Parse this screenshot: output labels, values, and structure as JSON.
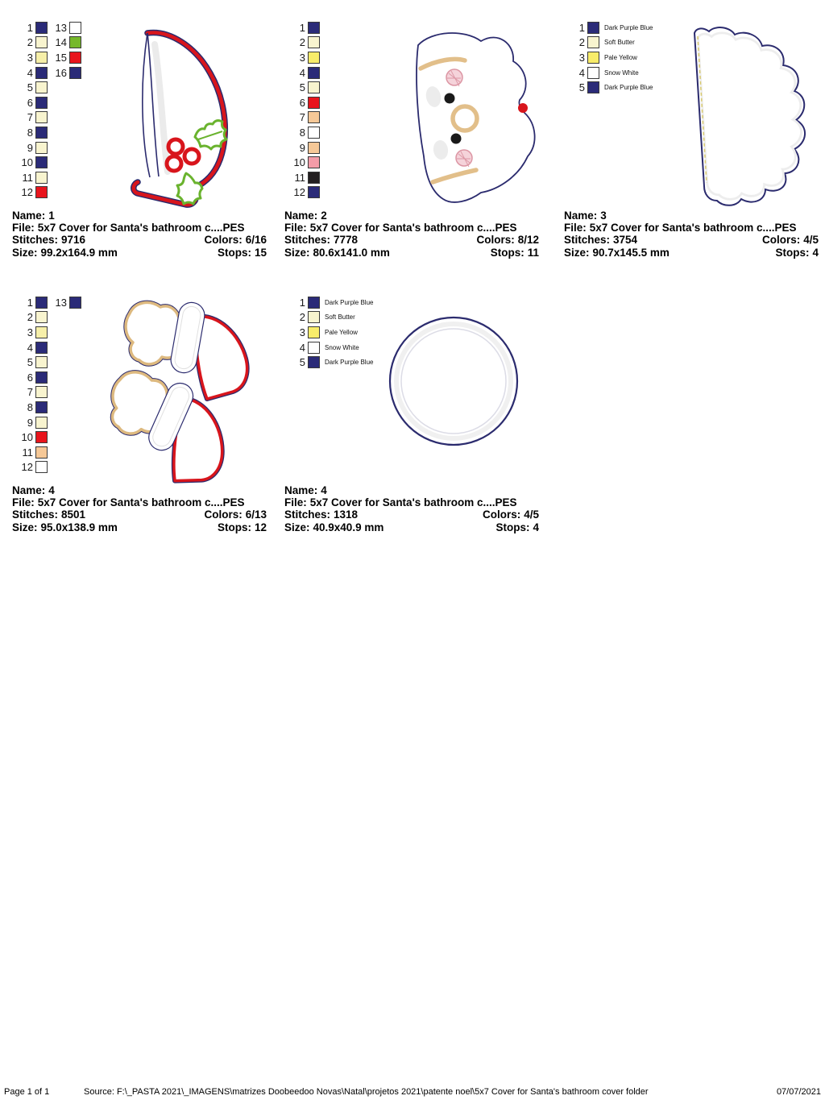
{
  "labels": {
    "name": "Name:",
    "file": "File:",
    "stitches": "Stitches:",
    "colors": "Colors:",
    "size": "Size:",
    "stops": "Stops:"
  },
  "accent_colors": {
    "navy": "#2b2b78",
    "red": "#e8141c",
    "green": "#76b82a",
    "tan": "#ddb97f",
    "butter": "#f8f4cf"
  },
  "designs": [
    {
      "preview": "santa-hat-with-holly",
      "info": {
        "name": "1",
        "file": "5x7 Cover for Santa's bathroom c....PES",
        "stitches": "9716",
        "colors": "6/16",
        "size": "99.2x164.9 mm",
        "stops": "15"
      },
      "palette": [
        {
          "n": 1,
          "color": "#2b2b78"
        },
        {
          "n": 2,
          "color": "#f8f4cf"
        },
        {
          "n": 3,
          "color": "#f6efa9"
        },
        {
          "n": 4,
          "color": "#2b2b78"
        },
        {
          "n": 5,
          "color": "#f8f4cf"
        },
        {
          "n": 6,
          "color": "#2b2b78"
        },
        {
          "n": 7,
          "color": "#f8f4cf"
        },
        {
          "n": 8,
          "color": "#2b2b78"
        },
        {
          "n": 9,
          "color": "#f8f4cf"
        },
        {
          "n": 10,
          "color": "#2b2b78"
        },
        {
          "n": 11,
          "color": "#f8f4cf"
        },
        {
          "n": 12,
          "color": "#e8141c"
        },
        {
          "n": 13,
          "color": "#ffffff"
        },
        {
          "n": 14,
          "color": "#76b82a"
        },
        {
          "n": 15,
          "color": "#e8141c"
        },
        {
          "n": 16,
          "color": "#2b2b78"
        }
      ]
    },
    {
      "preview": "santa-face-sideways",
      "info": {
        "name": "2",
        "file": "5x7 Cover for Santa's bathroom c....PES",
        "stitches": "7778",
        "colors": "8/12",
        "size": "80.6x141.0 mm",
        "stops": "11"
      },
      "palette": [
        {
          "n": 1,
          "color": "#2b2b78"
        },
        {
          "n": 2,
          "color": "#f8f4cf"
        },
        {
          "n": 3,
          "color": "#f8ec6a"
        },
        {
          "n": 4,
          "color": "#2b2b78"
        },
        {
          "n": 5,
          "color": "#f8f4cf"
        },
        {
          "n": 6,
          "color": "#e8141c"
        },
        {
          "n": 7,
          "color": "#f6c897"
        },
        {
          "n": 8,
          "color": "#ffffff"
        },
        {
          "n": 9,
          "color": "#f6c897"
        },
        {
          "n": 10,
          "color": "#f49ca8"
        },
        {
          "n": 11,
          "color": "#231f20"
        },
        {
          "n": 12,
          "color": "#2b2b78"
        }
      ]
    },
    {
      "preview": "scalloped-half-beard",
      "info": {
        "name": "3",
        "file": "5x7 Cover for Santa's bathroom c....PES",
        "stitches": "3754",
        "colors": "4/5",
        "size": "90.7x145.5 mm",
        "stops": "4"
      },
      "palette": [
        {
          "n": 1,
          "color": "#2b2b78",
          "label": "Dark Purple Blue"
        },
        {
          "n": 2,
          "color": "#f8f4cf",
          "label": "Soft Butter"
        },
        {
          "n": 3,
          "color": "#f8ec6a",
          "label": "Pale Yellow"
        },
        {
          "n": 4,
          "color": "#ffffff",
          "label": "Snow White"
        },
        {
          "n": 5,
          "color": "#2b2b78",
          "label": "Dark Purple Blue"
        }
      ]
    },
    {
      "preview": "santa-mittens-pair",
      "info": {
        "name": "4",
        "file": "5x7 Cover for Santa's bathroom c....PES",
        "stitches": "8501",
        "colors": "6/13",
        "size": "95.0x138.9 mm",
        "stops": "12"
      },
      "palette": [
        {
          "n": 1,
          "color": "#2b2b78"
        },
        {
          "n": 2,
          "color": "#f8f4cf"
        },
        {
          "n": 3,
          "color": "#f6efa9"
        },
        {
          "n": 4,
          "color": "#2b2b78"
        },
        {
          "n": 5,
          "color": "#f8f4cf"
        },
        {
          "n": 6,
          "color": "#2b2b78"
        },
        {
          "n": 7,
          "color": "#f8f4cf"
        },
        {
          "n": 8,
          "color": "#2b2b78"
        },
        {
          "n": 9,
          "color": "#f8f4cf"
        },
        {
          "n": 10,
          "color": "#e8141c"
        },
        {
          "n": 11,
          "color": "#f6c897"
        },
        {
          "n": 12,
          "color": "#ffffff"
        },
        {
          "n": 13,
          "color": "#2b2b78"
        }
      ]
    },
    {
      "preview": "circle-ring",
      "info": {
        "name": "4",
        "file": "5x7 Cover for Santa's bathroom c....PES",
        "stitches": "1318",
        "colors": "4/5",
        "size": "40.9x40.9 mm",
        "stops": "4"
      },
      "palette": [
        {
          "n": 1,
          "color": "#2b2b78",
          "label": "Dark Purple Blue"
        },
        {
          "n": 2,
          "color": "#f8f4cf",
          "label": "Soft Butter"
        },
        {
          "n": 3,
          "color": "#f8ec6a",
          "label": "Pale Yellow"
        },
        {
          "n": 4,
          "color": "#ffffff",
          "label": "Snow White"
        },
        {
          "n": 5,
          "color": "#2b2b78",
          "label": "Dark Purple Blue"
        }
      ]
    }
  ],
  "footer": {
    "page": "Page 1 of 1",
    "source": "Source: F:\\_PASTA 2021\\_IMAGENS\\matrizes Doobeedoo Novas\\Natal\\projetos 2021\\patente noel\\5x7 Cover for Santa's bathroom cover folder",
    "date": "07/07/2021"
  }
}
